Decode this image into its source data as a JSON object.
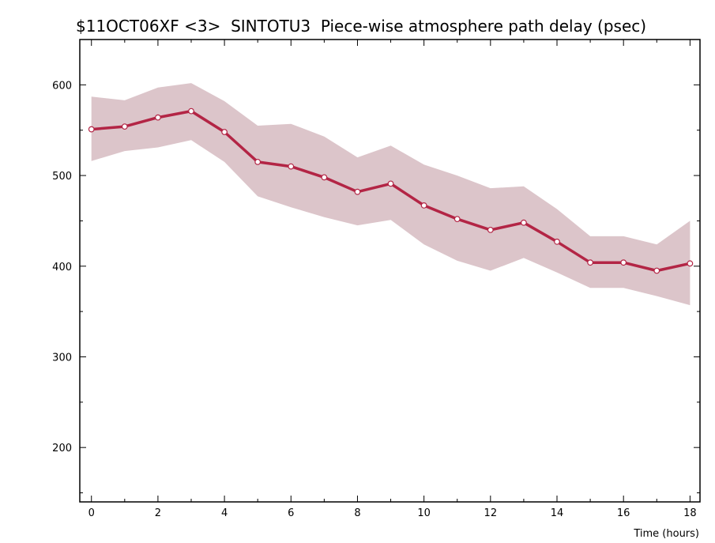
{
  "chart_data": {
    "type": "line",
    "title": "$11OCT06XF <3>  SINTOTU3  Piece-wise atmosphere path delay (psec)",
    "xlabel": "Time (hours)",
    "ylabel": "",
    "xlim": [
      -0.35,
      18.3
    ],
    "ylim": [
      140,
      650
    ],
    "x_ticks_major": [
      0,
      2,
      4,
      6,
      8,
      10,
      12,
      14,
      16,
      18
    ],
    "x_ticks_minor": [
      1,
      3,
      5,
      7,
      9,
      11,
      13,
      15,
      17
    ],
    "y_ticks_major": [
      200,
      300,
      400,
      500,
      600
    ],
    "y_ticks_minor": [
      150,
      250,
      350,
      450,
      550,
      650
    ],
    "grid": false,
    "colors": {
      "line": "#b32545",
      "band": "#dcc5ca",
      "marker_fill": "#ffffff"
    },
    "series": [
      {
        "x": [
          0,
          1,
          2,
          3,
          4,
          5,
          6,
          7,
          8,
          9,
          10,
          11,
          12,
          13,
          14,
          15,
          16,
          17,
          18
        ],
        "values": [
          551,
          554,
          564,
          571,
          548,
          515,
          510,
          498,
          482,
          491,
          467,
          452,
          440,
          448,
          427,
          404,
          404,
          395,
          403
        ],
        "upper": [
          587,
          583,
          597,
          602,
          582,
          555,
          557,
          543,
          520,
          533,
          512,
          500,
          486,
          488,
          463,
          433,
          433,
          424,
          450
        ],
        "lower": [
          516,
          527,
          531,
          539,
          515,
          477,
          465,
          454,
          445,
          451,
          424,
          406,
          395,
          409,
          393,
          376,
          376,
          367,
          357
        ]
      }
    ]
  }
}
